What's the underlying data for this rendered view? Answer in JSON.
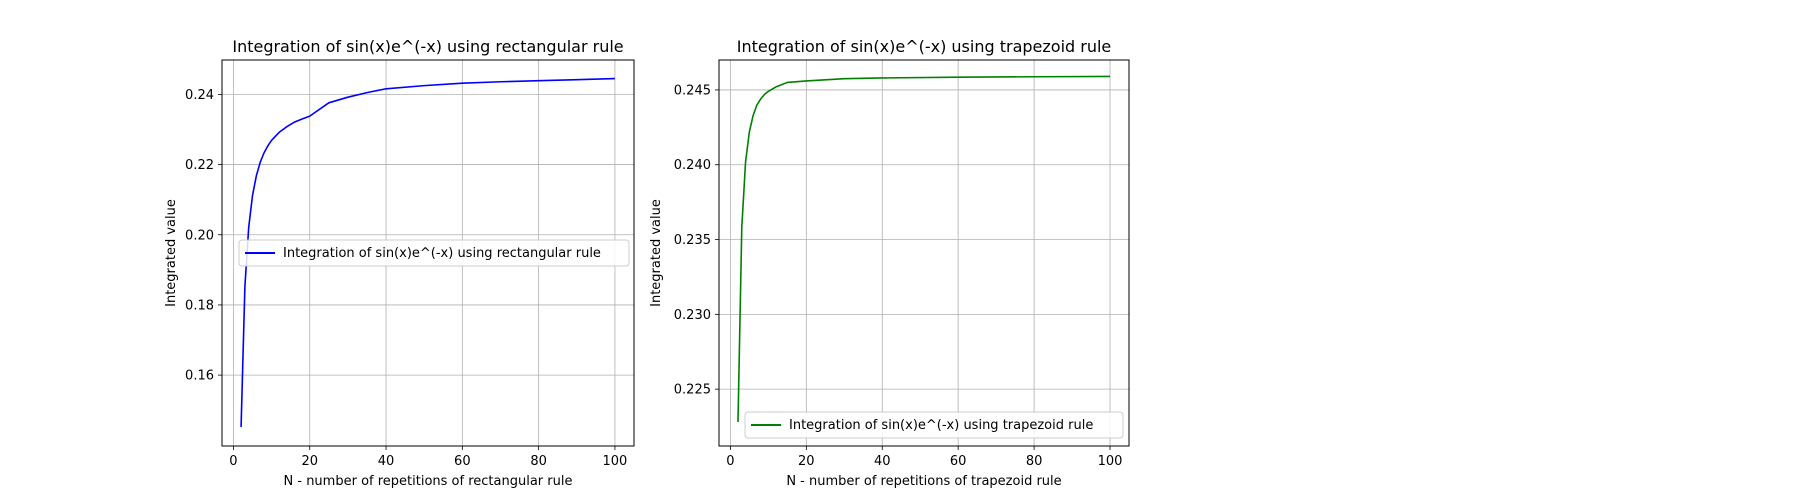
{
  "chart_data": [
    {
      "type": "line",
      "title": "Integration of sin(x)e^(-x) using rectangular rule",
      "xlabel": "N - number of repetitions of rectangular rule",
      "ylabel": "Integrated value",
      "xlim": [
        -3,
        105
      ],
      "ylim": [
        0.1398,
        0.2498
      ],
      "xticks": [
        0,
        20,
        40,
        60,
        80,
        100
      ],
      "yticks": [
        0.16,
        0.18,
        0.2,
        0.22,
        0.24
      ],
      "xtick_labels": [
        "0",
        "20",
        "40",
        "60",
        "80",
        "100"
      ],
      "ytick_labels": [
        "0.16",
        "0.18",
        "0.20",
        "0.22",
        "0.24"
      ],
      "grid": true,
      "legend_position": "center-right",
      "series": [
        {
          "name": "Integration of sin(x)e^(-x) using rectangular rule",
          "color": "#0000ff",
          "x": [
            2,
            3,
            4,
            5,
            6,
            7,
            8,
            9,
            10,
            12,
            14,
            16,
            18,
            20,
            25,
            30,
            35,
            40,
            50,
            60,
            70,
            80,
            90,
            100
          ],
          "y": [
            0.1452,
            0.1852,
            0.2021,
            0.2112,
            0.2168,
            0.2206,
            0.2233,
            0.2253,
            0.2269,
            0.2292,
            0.2308,
            0.2321,
            0.233,
            0.2338,
            0.2376,
            0.2392,
            0.2405,
            0.2416,
            0.2425,
            0.2432,
            0.2436,
            0.2439,
            0.2442,
            0.2445
          ]
        }
      ]
    },
    {
      "type": "line",
      "title": "Integration of sin(x)e^(-x) using trapezoid rule",
      "xlabel": "N - number of repetitions of trapezoid rule",
      "ylabel": "Integrated value",
      "xlim": [
        -3,
        105
      ],
      "ylim": [
        0.2212,
        0.247
      ],
      "xticks": [
        0,
        20,
        40,
        60,
        80,
        100
      ],
      "yticks": [
        0.225,
        0.23,
        0.235,
        0.24,
        0.245
      ],
      "xtick_labels": [
        "0",
        "20",
        "40",
        "60",
        "80",
        "100"
      ],
      "ytick_labels": [
        "0.225",
        "0.230",
        "0.235",
        "0.240",
        "0.245"
      ],
      "grid": true,
      "legend_position": "lower right",
      "series": [
        {
          "name": "Integration of sin(x)e^(-x) using trapezoid rule",
          "color": "#008000",
          "x": [
            2,
            3,
            4,
            5,
            6,
            7,
            8,
            9,
            10,
            12,
            15,
            20,
            30,
            40,
            60,
            80,
            100
          ],
          "y": [
            0.2228,
            0.2358,
            0.2402,
            0.2422,
            0.2433,
            0.244,
            0.2444,
            0.2447,
            0.2449,
            0.2452,
            0.2455,
            0.2456,
            0.24575,
            0.2458,
            0.24585,
            0.24588,
            0.2459
          ]
        }
      ]
    }
  ]
}
